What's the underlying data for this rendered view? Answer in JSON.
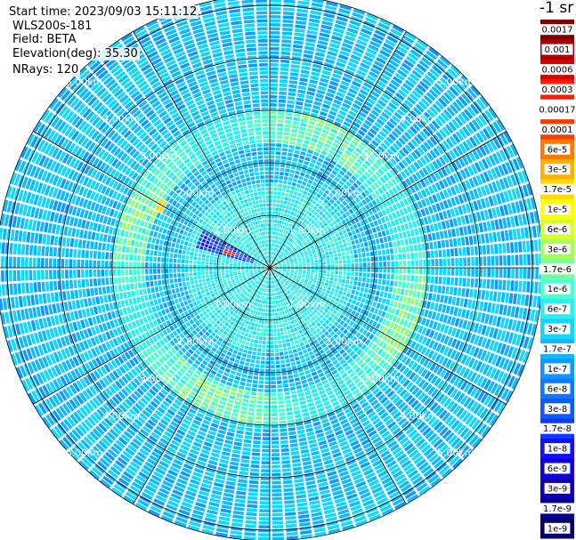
{
  "info": {
    "start_time": "Start time: 2023/09/03 15:11:12",
    "instrument": "WLS200s-181",
    "field": "Field: BETA",
    "elevation": "Elevation(deg): 35.30",
    "nrays": "NRays: 120"
  },
  "colorbar": {
    "unit": "-1 sr",
    "labels": [
      "0.0017",
      "0.001",
      "0.0006",
      "0.0003",
      "0.00017",
      "0.0001",
      "6e-5",
      "3e-5",
      "1.7e-5",
      "1e-5",
      "6e-6",
      "3e-6",
      "1.7e-6",
      "1e-6",
      "6e-7",
      "3e-7",
      "1.7e-7",
      "1e-7",
      "6e-8",
      "3e-8",
      "1.7e-8",
      "1e-8",
      "6e-9",
      "3e-9",
      "1.7e-9",
      "1e-9"
    ],
    "colors": [
      "#7a0000",
      "#a80000",
      "#d40000",
      "#ff1a00",
      "#ffffff",
      "#ff3b00",
      "#ff7a00",
      "#ffb000",
      "#ffd800",
      "#ffff00",
      "#d8ff2a",
      "#a8ff5a",
      "#7affa0",
      "#4cffd0",
      "#28f0f0",
      "#10d8ff",
      "#10b8ff",
      "#1098ff",
      "#1078ff",
      "#1058ff",
      "#1038ff",
      "#1010ff",
      "#1000e0",
      "#0c00b8",
      "#080090",
      "#05006a"
    ]
  },
  "chart_data": {
    "type": "heatmap",
    "subtype": "polar PPI scan",
    "nrays": 120,
    "range_rings_km": [
      1,
      2,
      3,
      4,
      5
    ],
    "range_labels": [
      "1.00km",
      "2.00km",
      "3.00km",
      "4.00km",
      "5.00km"
    ],
    "max_range_km": 5.2,
    "azimuth_spokes_deg": [
      0,
      30,
      60,
      90,
      120,
      150,
      180,
      210,
      240,
      270,
      300,
      330
    ],
    "label_azimuths_deg": [
      45,
      135,
      225,
      315
    ],
    "background_level": "3e-7 to 1.7e-8",
    "features": [
      {
        "name": "near-field enhanced return",
        "range_km": [
          0,
          1.6
        ],
        "level": "1.7e-7"
      },
      {
        "name": "enhanced ring",
        "range_km": [
          2.3,
          3.0
        ],
        "level": "1e-6 to 3e-6"
      },
      {
        "name": "low-return sector",
        "azimuth_deg": [
          284,
          300
        ],
        "range_km": [
          0.3,
          1.4
        ],
        "level": "1e-8"
      },
      {
        "name": "strong target",
        "azimuth_deg": 292,
        "range_km": 0.8,
        "level": "0.0006"
      },
      {
        "name": "spot",
        "azimuth_deg": 299,
        "range_km": 2.3,
        "level": "1.7e-5"
      }
    ]
  }
}
